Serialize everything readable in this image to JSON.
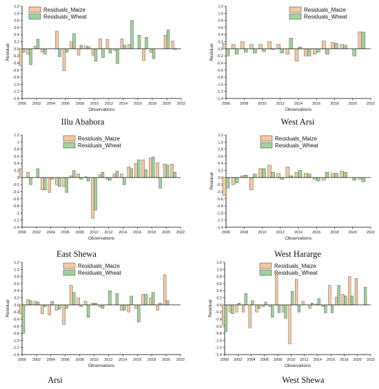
{
  "colors": {
    "maize": "#F6C8A0",
    "wheat": "#9ED39D",
    "stroke": "#3a3a3a",
    "zero_line": "#111111"
  },
  "chart_data": [
    {
      "type": "bar",
      "caption": "Illu Ababora",
      "xlabel": "Observations",
      "ylabel": "Residual",
      "x": [
        2000,
        2001,
        2002,
        2003,
        2004,
        2005,
        2006,
        2007,
        2008,
        2009,
        2010,
        2011,
        2012,
        2013,
        2014,
        2015,
        2016,
        2017,
        2018,
        2019,
        2020,
        2021
      ],
      "xlim": [
        2000,
        2022
      ],
      "xticks": [
        2000,
        2002,
        2004,
        2006,
        2008,
        2010,
        2012,
        2014,
        2016,
        2018,
        2020,
        2022
      ],
      "ylim": [
        -1.4,
        1.2
      ],
      "yticks": [
        -1.4,
        -1.2,
        -1.0,
        -0.8,
        -0.6,
        -0.4,
        -0.2,
        0.0,
        0.2,
        0.4,
        0.6,
        0.8,
        1.0,
        1.2
      ],
      "ytick_labels": [
        "-1.4",
        "-1.2",
        "-1.0",
        "-0.8",
        "-0.6",
        "-0.4",
        "-0.2",
        "0.0",
        "0.2",
        "0.4",
        "0.6",
        "0.8",
        "1.0",
        "1.2"
      ],
      "legend_position": "top-left",
      "series": [
        {
          "name": "Residuals_Maize",
          "values": [
            -0.48,
            -0.15,
            0.07,
            -0.1,
            0.0,
            0.5,
            -0.62,
            0.2,
            -0.18,
            0.08,
            -0.18,
            0.28,
            0.26,
            -0.05,
            0.28,
            0.12,
            0.0,
            -0.33,
            -0.1,
            0.0,
            0.38,
            0.22
          ]
        },
        {
          "name": "Residuals_Wheat",
          "values": [
            -0.1,
            -0.45,
            0.27,
            -0.15,
            0.0,
            -0.22,
            -0.1,
            0.43,
            0.1,
            0.06,
            -0.35,
            -0.25,
            -0.12,
            -0.42,
            0.1,
            0.8,
            0.38,
            0.32,
            -0.28,
            0.0,
            0.53,
            -0.02
          ]
        }
      ]
    },
    {
      "type": "bar",
      "caption": "West Arsi",
      "xlabel": "Observations",
      "ylabel": "Residual",
      "x": [
        2006,
        2007,
        2008,
        2009,
        2010,
        2011,
        2012,
        2013,
        2014,
        2015,
        2016,
        2017,
        2018,
        2019,
        2020,
        2021
      ],
      "xlim": [
        2006,
        2022
      ],
      "xticks": [
        2006,
        2008,
        2010,
        2012,
        2014,
        2016,
        2018,
        2020,
        2022
      ],
      "ylim": [
        -1.4,
        1.2
      ],
      "yticks": [
        -1.4,
        -1.2,
        -1.0,
        -0.8,
        -0.6,
        -0.4,
        -0.2,
        0.0,
        0.2,
        0.4,
        0.6,
        0.8,
        1.0,
        1.2
      ],
      "ytick_labels": [
        "-1.4",
        "-1.2",
        "-1.0",
        "-0.8",
        "-0.6",
        "-0.4",
        "-0.2",
        "0.0",
        "0.2",
        "0.4",
        "0.6",
        "0.8",
        "1.0",
        "1.2"
      ],
      "legend_position": "top-right",
      "series": [
        {
          "name": "Residuals_Maize",
          "values": [
            0.15,
            0.12,
            0.2,
            0.12,
            0.12,
            0.2,
            0.12,
            -0.15,
            -0.35,
            -0.2,
            -0.15,
            0.22,
            0.18,
            0.12,
            0.0,
            0.48
          ]
        },
        {
          "name": "Residuals_Wheat",
          "values": [
            -0.2,
            -0.15,
            -0.1,
            -0.12,
            -0.08,
            -0.02,
            -0.12,
            0.3,
            0.05,
            -0.2,
            -0.1,
            -0.15,
            0.15,
            0.1,
            -0.2,
            0.47
          ]
        }
      ]
    },
    {
      "type": "bar",
      "caption": "East Shewa",
      "xlabel": "Observations",
      "ylabel": "",
      "x": [
        2000,
        2001,
        2002,
        2003,
        2004,
        2005,
        2006,
        2007,
        2008,
        2009,
        2010,
        2011,
        2012,
        2013,
        2014,
        2015,
        2016,
        2017,
        2018,
        2019,
        2020,
        2021
      ],
      "xlim": [
        2000,
        2022
      ],
      "xticks": [
        2000,
        2002,
        2004,
        2006,
        2008,
        2010,
        2012,
        2014,
        2016,
        2018,
        2020,
        2022
      ],
      "ylim": [
        -1.4,
        1.2
      ],
      "yticks": [
        -1.4,
        -1.2,
        -1.0,
        -0.8,
        -0.6,
        -0.4,
        -0.2,
        0.0,
        0.2,
        0.4,
        0.6,
        0.8,
        1.0,
        1.2
      ],
      "ytick_labels": [
        "-1.4",
        "-1.2",
        "-1",
        "-0.8",
        "-0.6",
        "-0.4",
        "-0.2",
        "0",
        "0.2",
        "0.4",
        "0.6",
        "0.8",
        "1",
        "1.2"
      ],
      "legend_position": "top-center",
      "series": [
        {
          "name": "Residuals_Maize",
          "values": [
            0.25,
            0.15,
            0.0,
            -0.35,
            -0.42,
            -0.2,
            -0.25,
            0.05,
            0.1,
            0.02,
            -1.15,
            0.08,
            -0.05,
            0.1,
            0.1,
            0.3,
            0.4,
            0.5,
            0.55,
            0.42,
            0.38,
            0.38
          ]
        },
        {
          "name": "Residuals_Wheat",
          "values": [
            0.0,
            -0.2,
            0.25,
            -0.35,
            -0.05,
            -0.25,
            -0.42,
            0.2,
            -0.05,
            -0.1,
            -0.92,
            0.15,
            -0.08,
            0.18,
            -0.2,
            0.25,
            0.5,
            0.22,
            0.58,
            -0.3,
            0.35,
            0.15
          ]
        }
      ]
    },
    {
      "type": "bar",
      "caption": "West Hararge",
      "xlabel": "Observations",
      "ylabel": "Residual",
      "x": [
        2006,
        2007,
        2008,
        2009,
        2010,
        2011,
        2012,
        2013,
        2014,
        2015,
        2016,
        2017,
        2018,
        2019,
        2020,
        2021
      ],
      "xlim": [
        2006,
        2022
      ],
      "xticks": [
        2006,
        2008,
        2010,
        2012,
        2014,
        2016,
        2018,
        2020,
        2022
      ],
      "ylim": [
        -1.4,
        1.2
      ],
      "yticks": [
        -1.4,
        -1.2,
        -1.0,
        -0.8,
        -0.6,
        -0.4,
        -0.2,
        0.0,
        0.2,
        0.4,
        0.6,
        0.8,
        1.0,
        1.2
      ],
      "ytick_labels": [
        "-1.4",
        "-1.2",
        "-1.0",
        "-0.8",
        "-0.6",
        "-0.4",
        "-0.2",
        "0.0",
        "0.2",
        "0.4",
        "0.6",
        "0.8",
        "1.0",
        "1.2"
      ],
      "legend_position": "top-center",
      "series": [
        {
          "name": "Residuals_Maize",
          "values": [
            -0.5,
            -0.2,
            0.05,
            -0.35,
            0.25,
            0.35,
            0.12,
            0.3,
            0.15,
            0.12,
            -0.05,
            -0.08,
            0.12,
            0.18,
            0.0,
            -0.05
          ]
        },
        {
          "name": "Residuals_Wheat",
          "values": [
            -0.3,
            -0.15,
            0.07,
            0.1,
            0.25,
            0.15,
            -0.05,
            0.05,
            0.2,
            0.1,
            -0.1,
            0.15,
            0.12,
            0.15,
            -0.08,
            -0.12
          ]
        }
      ]
    },
    {
      "type": "bar",
      "caption": "Arsi",
      "xlabel": "Observations",
      "ylabel": "Residual",
      "x": [
        2000,
        2001,
        2002,
        2003,
        2004,
        2005,
        2006,
        2007,
        2008,
        2009,
        2010,
        2011,
        2012,
        2013,
        2014,
        2015,
        2016,
        2017,
        2018,
        2019,
        2020,
        2021
      ],
      "xlim": [
        2000,
        2022
      ],
      "xticks": [
        2000,
        2002,
        2004,
        2006,
        2008,
        2010,
        2012,
        2014,
        2016,
        2018,
        2020,
        2022
      ],
      "ylim": [
        -1.4,
        1.2
      ],
      "yticks": [
        -1.4,
        -1.2,
        -1.0,
        -0.8,
        -0.6,
        -0.4,
        -0.2,
        0.0,
        0.2,
        0.4,
        0.6,
        0.8,
        1.0,
        1.2
      ],
      "ytick_labels": [
        "-1.4",
        "-1.2",
        "-1.0",
        "-0.8",
        "-0.6",
        "-0.4",
        "-0.2",
        "0.0",
        "0.2",
        "0.4",
        "0.6",
        "0.8",
        "1.0",
        "1.2"
      ],
      "legend_position": "top-center",
      "series": [
        {
          "name": "Residuals_Maize",
          "values": [
            -0.25,
            0.15,
            0.1,
            -0.25,
            -0.28,
            -0.15,
            -0.55,
            0.55,
            0.2,
            0.1,
            0.05,
            -0.05,
            0.0,
            0.0,
            -0.15,
            -0.2,
            -0.1,
            0.3,
            0.2,
            -0.15,
            0.85,
            0.0
          ]
        },
        {
          "name": "Residuals_Wheat",
          "values": [
            -0.8,
            0.12,
            0.08,
            -0.05,
            0.1,
            -0.12,
            -0.1,
            0.35,
            -0.05,
            -0.35,
            0.05,
            -0.1,
            0.4,
            0.32,
            -0.15,
            0.25,
            -0.48,
            0.3,
            0.35,
            0.05,
            0.12,
            0.0
          ]
        }
      ]
    },
    {
      "type": "bar",
      "caption": "West Shewa",
      "xlabel": "Observations",
      "ylabel": "Residual",
      "x": [
        2000,
        2001,
        2002,
        2003,
        2004,
        2005,
        2006,
        2007,
        2008,
        2009,
        2010,
        2011,
        2012,
        2013,
        2014,
        2015,
        2016,
        2017,
        2018,
        2019,
        2020,
        2021
      ],
      "xlim": [
        2000,
        2022
      ],
      "xticks": [
        2000,
        2002,
        2004,
        2006,
        2008,
        2010,
        2012,
        2014,
        2016,
        2018,
        2020,
        2022
      ],
      "ylim": [
        -1.4,
        1.2
      ],
      "yticks": [
        -1.4,
        -1.2,
        -1.0,
        -0.8,
        -0.6,
        -0.4,
        -0.2,
        0.0,
        0.2,
        0.4,
        0.6,
        0.8,
        1.0,
        1.2
      ],
      "ytick_labels": [
        "-1.4",
        "-1.2",
        "-1.0",
        "-0.8",
        "-0.6",
        "-0.4",
        "-0.2",
        "0.0",
        "0.2",
        "0.4",
        "0.6",
        "0.8",
        "1.0",
        "1.2"
      ],
      "legend_position": "top-center",
      "series": [
        {
          "name": "Residuals_Maize",
          "values": [
            -0.55,
            -0.2,
            -0.2,
            -0.2,
            -0.65,
            -0.2,
            -0.05,
            -0.05,
            0.85,
            -0.2,
            -1.1,
            0.72,
            0.1,
            -0.1,
            0.02,
            -0.05,
            0.55,
            0.22,
            0.3,
            0.8,
            0.75,
            0.0
          ]
        },
        {
          "name": "Residuals_Wheat",
          "values": [
            -0.75,
            -0.25,
            0.05,
            0.32,
            0.12,
            -0.1,
            0.08,
            -0.35,
            -0.22,
            -0.38,
            0.38,
            -0.2,
            0.0,
            0.05,
            0.18,
            -0.22,
            -0.22,
            0.55,
            0.25,
            0.25,
            0.0,
            0.5
          ]
        }
      ]
    }
  ]
}
